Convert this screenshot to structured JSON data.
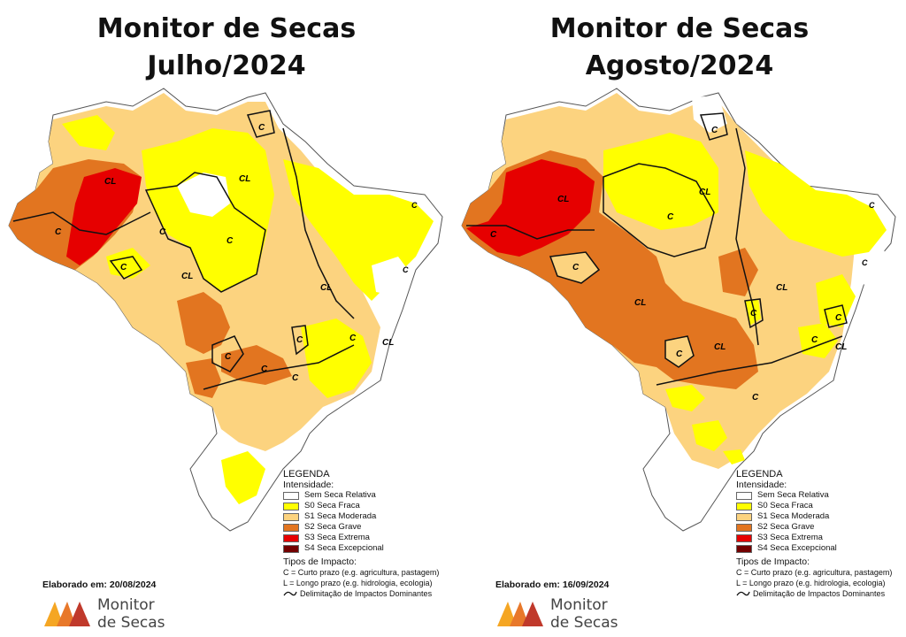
{
  "colors": {
    "s_none": "#ffffff",
    "s0": "#ffff00",
    "s1": "#fcd37f",
    "s2": "#e27520",
    "s3": "#e60000",
    "s4": "#730000",
    "border": "#555555"
  },
  "panels": [
    {
      "title_line1": "Monitor de Secas",
      "title_line2": "Julho/2024",
      "elaborado": "Elaborado em: 20/08/2024"
    },
    {
      "title_line1": "Monitor de Secas",
      "title_line2": "Agosto/2024",
      "elaborado": "Elaborado em: 16/09/2024"
    }
  ],
  "legend": {
    "title": "LEGENDA",
    "intensity_label": "Intensidade:",
    "items": [
      {
        "label": "Sem Seca Relativa",
        "color": "#ffffff"
      },
      {
        "label": "S0 Seca Fraca",
        "color": "#ffff00"
      },
      {
        "label": "S1 Seca Moderada",
        "color": "#fcd37f"
      },
      {
        "label": "S2 Seca Grave",
        "color": "#e27520"
      },
      {
        "label": "S3 Seca Extrema",
        "color": "#e60000"
      },
      {
        "label": "S4 Seca Excepcional",
        "color": "#730000"
      }
    ],
    "impact_title": "Tipos de Impacto:",
    "impact_c": "C = Curto prazo (e.g. agricultura, pastagem)",
    "impact_l": "L = Longo prazo (e.g. hidrologia, ecologia)",
    "impact_line": "Delimitação de Impactos Dominantes"
  },
  "logo": {
    "line1": "Monitor",
    "line2": "de Secas"
  },
  "map_labels": {
    "cl": "CL",
    "c": "C"
  }
}
